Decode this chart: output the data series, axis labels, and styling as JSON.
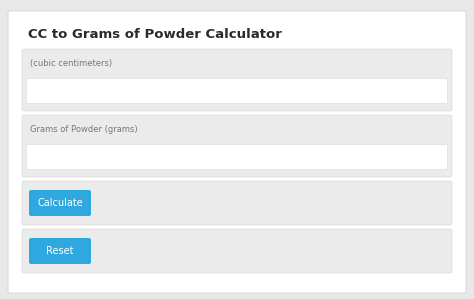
{
  "title": "CC to Grams of Powder Calculator",
  "title_fontsize": 9.5,
  "title_color": "#2a2a2a",
  "bg_color": "#e8e8e8",
  "panel_bg": "#ffffff",
  "field_bg_color": "#ebebeb",
  "input_bg": "#ffffff",
  "button_color": "#2fa8e0",
  "button_text_color": "#ffffff",
  "field1_label": "(cubic centimeters)",
  "field2_label": "Grams of Powder (grams)",
  "btn1_label": "Calculate",
  "btn2_label": "Reset",
  "label_fontsize": 6.0,
  "label_color": "#777777",
  "btn_fontsize": 7.0
}
